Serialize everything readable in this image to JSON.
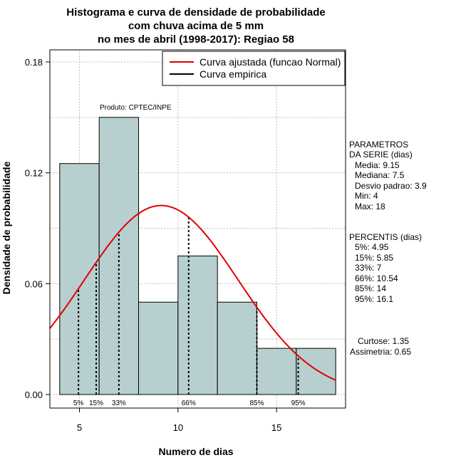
{
  "chart_data": {
    "type": "histogram",
    "title": [
      "Histograma e curva de densidade de probabilidade",
      "com chuva acima de 5 mm",
      "no mes de abril (1998-2017): Regiao 58"
    ],
    "xlabel": "Numero de dias",
    "ylabel": "Densidade de probabilidade",
    "xlim": [
      3.5,
      18.5
    ],
    "ylim": [
      0,
      0.18
    ],
    "x_ticks": [
      5,
      10,
      15
    ],
    "y_ticks": [
      0.0,
      0.06,
      0.12,
      0.18
    ],
    "y_tick_labels": [
      "0.00",
      "0.06",
      "0.12",
      "0.18"
    ],
    "bins": [
      {
        "from": 4,
        "to": 6,
        "density": 0.125
      },
      {
        "from": 6,
        "to": 8,
        "density": 0.15
      },
      {
        "from": 8,
        "to": 10,
        "density": 0.05
      },
      {
        "from": 10,
        "to": 12,
        "density": 0.075
      },
      {
        "from": 12,
        "to": 14,
        "density": 0.05
      },
      {
        "from": 14,
        "to": 16,
        "density": 0.025
      },
      {
        "from": 16,
        "to": 18,
        "density": 0.025
      }
    ],
    "normal_curve": {
      "mean": 9.15,
      "sd": 3.9
    },
    "percentile_lines": [
      {
        "label": "5%",
        "x": 4.95
      },
      {
        "label": "15%",
        "x": 5.85
      },
      {
        "label": "33%",
        "x": 7
      },
      {
        "label": "66%",
        "x": 10.54
      },
      {
        "label": "85%",
        "x": 14
      },
      {
        "label": "95%",
        "x": 16.1
      }
    ],
    "legend": {
      "position": "top-right",
      "entries": [
        {
          "label": "Curva ajustada (funcao Normal)",
          "color": "#e00000"
        },
        {
          "label": "Curva empirica",
          "color": "#000000"
        }
      ]
    },
    "annotation": "Produto: CPTEC/INPE",
    "bar_color": "#b7cfcf",
    "grid": true
  },
  "stats_panel": {
    "parametros_title": [
      "PARAMETROS",
      "DA SERIE (dias)"
    ],
    "parametros": [
      "Media: 9.15",
      "Mediana: 7.5",
      "Desvio padrao: 3.9",
      "Min: 4",
      "Max: 18"
    ],
    "percentis_title": "PERCENTIS (dias)",
    "percentis": [
      "5%: 4.95",
      "15%: 5.85",
      "33%: 7",
      "66%: 10.54",
      "85%: 14",
      "95%: 16.1"
    ],
    "curtose": "Curtose: 1.35",
    "assimetria": "Assimetria: 0.65"
  }
}
